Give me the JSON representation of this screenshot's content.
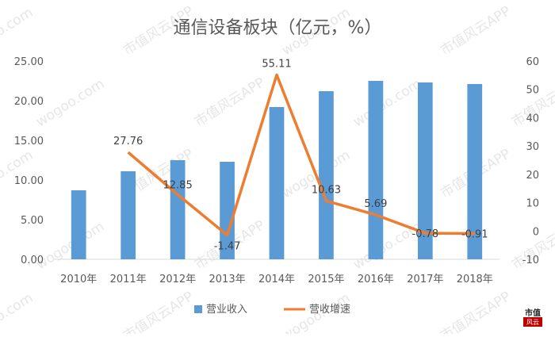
{
  "chart_data": {
    "type": "bar",
    "title": "通信设备板块（亿元，%）",
    "categories": [
      "2010年",
      "2011年",
      "2012年",
      "2013年",
      "2014年",
      "2015年",
      "2016年",
      "2017年",
      "2018年"
    ],
    "series": [
      {
        "name": "营业收入",
        "type": "bar",
        "axis": "left",
        "color": "#5B9BD5",
        "values": [
          8.7,
          11.1,
          12.5,
          12.3,
          19.2,
          21.2,
          22.5,
          22.3,
          22.1
        ]
      },
      {
        "name": "营收增速",
        "type": "line",
        "axis": "right",
        "color": "#ED7D31",
        "values": [
          null,
          27.76,
          12.85,
          -1.47,
          55.11,
          10.63,
          5.69,
          -0.78,
          -0.91
        ],
        "labels": [
          "",
          "27.76",
          "12.85",
          "-1.47",
          "55.11",
          "10.63",
          "5.69",
          "-0.78",
          "-0.91"
        ]
      }
    ],
    "y_left": {
      "min": 0,
      "max": 25,
      "step": 5,
      "tick_labels": [
        "0.00",
        "5.00",
        "10.00",
        "15.00",
        "20.00",
        "25.00"
      ]
    },
    "y_right": {
      "min": -10,
      "max": 60,
      "step": 10,
      "tick_labels": [
        "-10",
        "0",
        "10",
        "20",
        "30",
        "40",
        "50",
        "60"
      ]
    },
    "grid": false,
    "legend_position": "bottom"
  },
  "watermark": {
    "site": "wogoo.com",
    "app": "市值风云APP",
    "logo_top": "市值",
    "logo_bottom": "风云"
  }
}
